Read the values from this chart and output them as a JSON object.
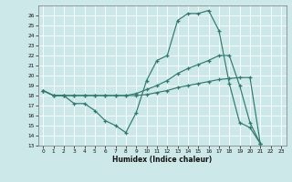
{
  "xlabel": "Humidex (Indice chaleur)",
  "bg_color": "#cde8e8",
  "line_color": "#2d7a6e",
  "grid_color": "#b8d8d8",
  "ylim": [
    13,
    27
  ],
  "xlim": [
    -0.5,
    23.5
  ],
  "yticks": [
    13,
    14,
    15,
    16,
    17,
    18,
    19,
    20,
    21,
    22,
    23,
    24,
    25,
    26
  ],
  "xticks": [
    0,
    1,
    2,
    3,
    4,
    5,
    6,
    7,
    8,
    9,
    10,
    11,
    12,
    13,
    14,
    15,
    16,
    17,
    18,
    19,
    20,
    21,
    22,
    23
  ],
  "line1_y": [
    18.5,
    18.0,
    18.0,
    17.2,
    17.2,
    16.5,
    15.5,
    15.0,
    14.3,
    16.3,
    19.5,
    21.5,
    22.0,
    25.5,
    26.2,
    26.2,
    26.5,
    24.5,
    19.2,
    15.3,
    14.8,
    13.2
  ],
  "line2_y": [
    18.5,
    18.0,
    18.0,
    18.0,
    18.0,
    18.0,
    18.0,
    18.0,
    18.0,
    18.2,
    18.6,
    19.0,
    19.5,
    20.2,
    20.7,
    21.1,
    21.5,
    22.0,
    22.0,
    19.0,
    15.3,
    13.2
  ],
  "line3_y": [
    18.5,
    18.0,
    18.0,
    18.0,
    18.0,
    18.0,
    18.0,
    18.0,
    18.0,
    18.0,
    18.1,
    18.3,
    18.5,
    18.8,
    19.0,
    19.2,
    19.4,
    19.6,
    19.7,
    19.8,
    19.8,
    13.2
  ]
}
